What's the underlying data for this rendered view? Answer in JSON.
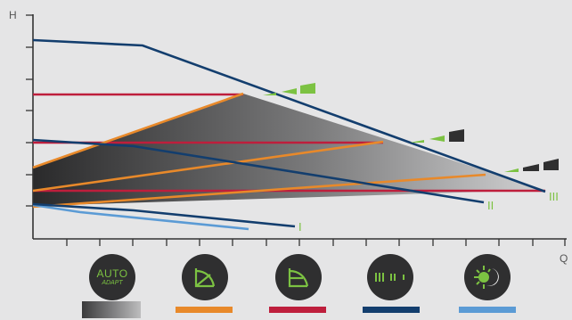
{
  "axes": {
    "y_label": "H",
    "x_label": "Q"
  },
  "curve_labels": {
    "low": "I",
    "mid": "II",
    "high": "III"
  },
  "modes": [
    {
      "id": "auto-adapt",
      "line1": "AUTO",
      "line2": "ADAPT",
      "legend": "gradient"
    },
    {
      "id": "proportional-pressure",
      "icon": "proportional-pressure-icon",
      "legend_color": "#e8892a"
    },
    {
      "id": "constant-pressure",
      "icon": "constant-pressure-icon",
      "legend_color": "#be1e3c"
    },
    {
      "id": "constant-curve",
      "icon": "constant-curve-icon",
      "symbol": "III  II  I",
      "legend_color": "#133e6e"
    },
    {
      "id": "night-mode",
      "icon": "night-mode-icon",
      "legend_color": "#5b9bd5"
    }
  ],
  "colors": {
    "orange": "#e8892a",
    "red": "#be1e3c",
    "navy": "#133e6e",
    "lightblue": "#5b9bd5",
    "green": "#7cc242",
    "dark": "#2f2f30"
  }
}
